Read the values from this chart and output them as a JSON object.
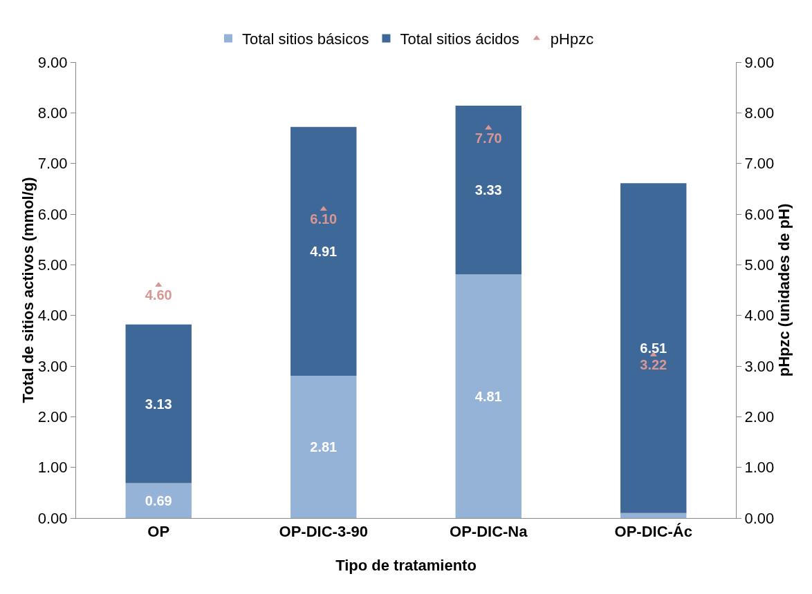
{
  "chart_data": {
    "type": "bar",
    "stacked": true,
    "xlabel": "Tipo de tratamiento",
    "ylabel": "Total de sitios activos (mmol/g)",
    "y2label": "pHpzc (unidades de pH)",
    "categories": [
      "OP",
      "OP-DIC-3-90",
      "OP-DIC-Na",
      "OP-DIC-Ác"
    ],
    "series": [
      {
        "name": "Total sitios básicos",
        "color": "#95b3d7",
        "values": [
          0.69,
          2.81,
          4.81,
          0.1
        ],
        "value_labels": [
          "0.69",
          "2.81",
          "4.81",
          null
        ]
      },
      {
        "name": "Total sitios ácidos",
        "color": "#3e6898",
        "values": [
          3.13,
          4.91,
          3.33,
          6.51
        ],
        "value_labels": [
          "3.13",
          "4.91",
          "3.33",
          "6.51"
        ]
      },
      {
        "name": "pHpzc",
        "type": "scatter",
        "axis": "y2",
        "marker": "triangle",
        "color": "#d99694",
        "values": [
          4.6,
          6.1,
          7.7,
          3.22
        ],
        "value_labels": [
          "4.60",
          "6.10",
          "7.70",
          "3.22"
        ]
      }
    ],
    "ylim": [
      0,
      9
    ],
    "yticks": [
      {
        "value": 0,
        "label": "0.00"
      },
      {
        "value": 1,
        "label": "1.00"
      },
      {
        "value": 2,
        "label": "2.00"
      },
      {
        "value": 3,
        "label": "3.00"
      },
      {
        "value": 4,
        "label": "4.00"
      },
      {
        "value": 5,
        "label": "5.00"
      },
      {
        "value": 6,
        "label": "6.00"
      },
      {
        "value": 7,
        "label": "7.00"
      },
      {
        "value": 8,
        "label": "8.00"
      },
      {
        "value": 9,
        "label": "9.00"
      }
    ],
    "y2lim": [
      0,
      9
    ],
    "y2ticks": [
      {
        "value": 0,
        "label": "0.00"
      },
      {
        "value": 1,
        "label": "1.00"
      },
      {
        "value": 2,
        "label": "2.00"
      },
      {
        "value": 3,
        "label": "3.00"
      },
      {
        "value": 4,
        "label": "4.00"
      },
      {
        "value": 5,
        "label": "5.00"
      },
      {
        "value": 6,
        "label": "6.00"
      },
      {
        "value": 7,
        "label": "7.00"
      },
      {
        "value": 8,
        "label": "8.00"
      },
      {
        "value": 9,
        "label": "9.00"
      }
    ],
    "grid": false,
    "legend": "top"
  }
}
